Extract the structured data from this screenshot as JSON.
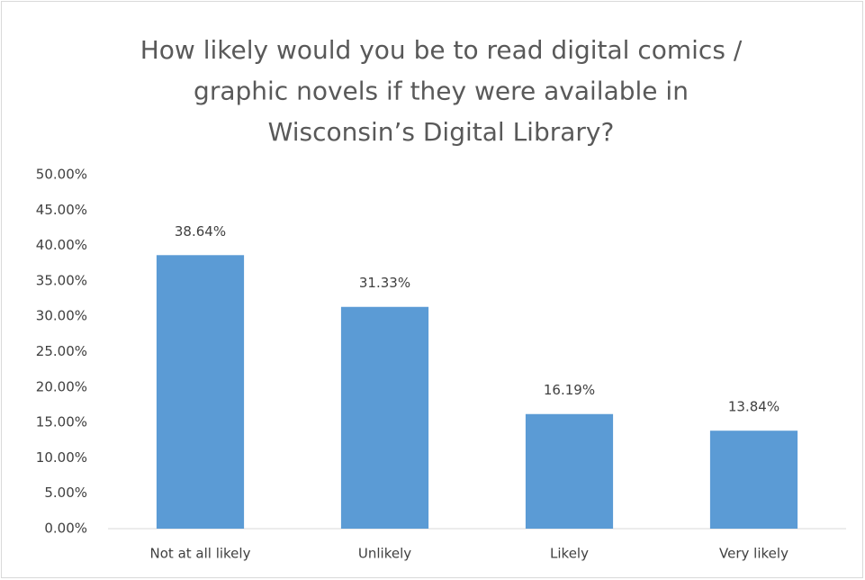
{
  "chart_data": {
    "type": "bar",
    "title": [
      "How likely would you be to read digital comics /",
      "graphic novels if they were available in",
      "Wisconsin’s Digital Library?"
    ],
    "categories": [
      "Not at all likely",
      "Unlikely",
      "Likely",
      "Very likely"
    ],
    "values": [
      38.64,
      31.33,
      16.19,
      13.84
    ],
    "value_labels": [
      "38.64%",
      "31.33%",
      "16.19%",
      "13.84%"
    ],
    "color": "#5b9bd5",
    "ylim": [
      0,
      50
    ],
    "yticks": [
      {
        "value": 0,
        "label": "0.00%"
      },
      {
        "value": 5,
        "label": "5.00%"
      },
      {
        "value": 10,
        "label": "10.00%"
      },
      {
        "value": 15,
        "label": "15.00%"
      },
      {
        "value": 20,
        "label": "20.00%"
      },
      {
        "value": 25,
        "label": "25.00%"
      },
      {
        "value": 30,
        "label": "30.00%"
      },
      {
        "value": 35,
        "label": "35.00%"
      },
      {
        "value": 40,
        "label": "40.00%"
      },
      {
        "value": 45,
        "label": "45.00%"
      },
      {
        "value": 50,
        "label": "50.00%"
      }
    ],
    "grid": false
  }
}
